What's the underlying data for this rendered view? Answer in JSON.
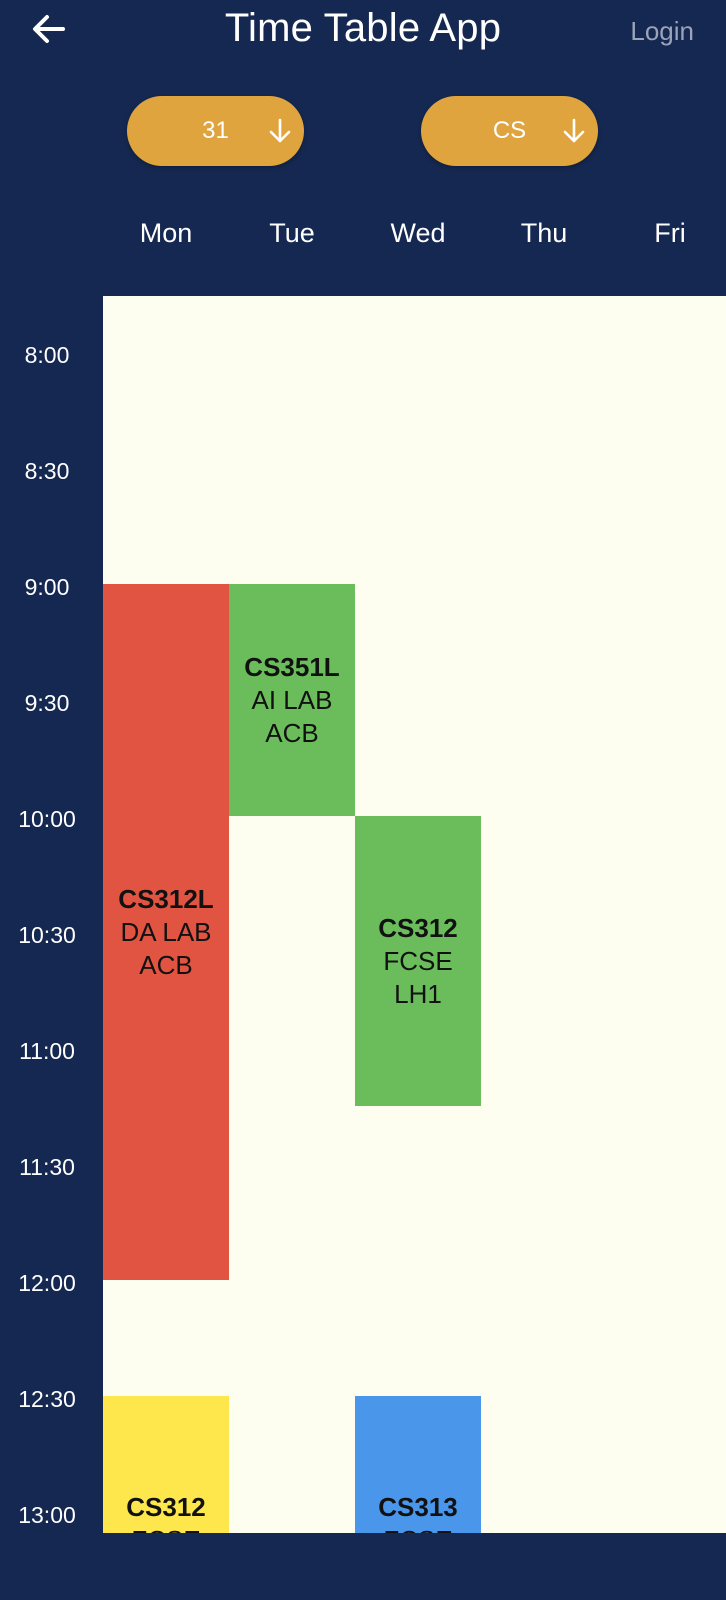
{
  "appbar": {
    "title": "Time Table App",
    "login_label": "Login",
    "back_icon": "arrow-left-icon"
  },
  "filters": {
    "semester": {
      "value": "31",
      "icon": "arrow-down-icon"
    },
    "branch": {
      "value": "CS",
      "icon": "arrow-down-icon"
    }
  },
  "days": [
    "Mon",
    "Tue",
    "Wed",
    "Thu",
    "Fri"
  ],
  "times": [
    "8:00",
    "8:30",
    "9:00",
    "9:30",
    "10:00",
    "10:30",
    "11:00",
    "11:30",
    "12:00",
    "12:30",
    "13:00"
  ],
  "slots": [
    {
      "day": "Mon",
      "start": "9:00",
      "end": "12:00",
      "code": "CS312L",
      "subject": "DA LAB",
      "room": "ACB",
      "color": "#e15441"
    },
    {
      "day": "Tue",
      "start": "9:00",
      "end": "10:00",
      "code": "CS351L",
      "subject": "AI LAB",
      "room": "ACB",
      "color": "#6bbd5b"
    },
    {
      "day": "Wed",
      "start": "10:00",
      "end": "11:15",
      "code": "CS312",
      "subject": "FCSE",
      "room": "LH1",
      "color": "#6bbd5b"
    },
    {
      "day": "Mon",
      "start": "12:30",
      "end": "",
      "code": "CS312",
      "subject": "FCSE",
      "room": "",
      "color": "#fde74d"
    },
    {
      "day": "Wed",
      "start": "12:30",
      "end": "",
      "code": "CS313",
      "subject": "FCSE",
      "room": "",
      "color": "#4a96eb"
    }
  ],
  "colors": {
    "background": "#152851",
    "pill": "#e0a43f",
    "grid": "#fefef0"
  }
}
